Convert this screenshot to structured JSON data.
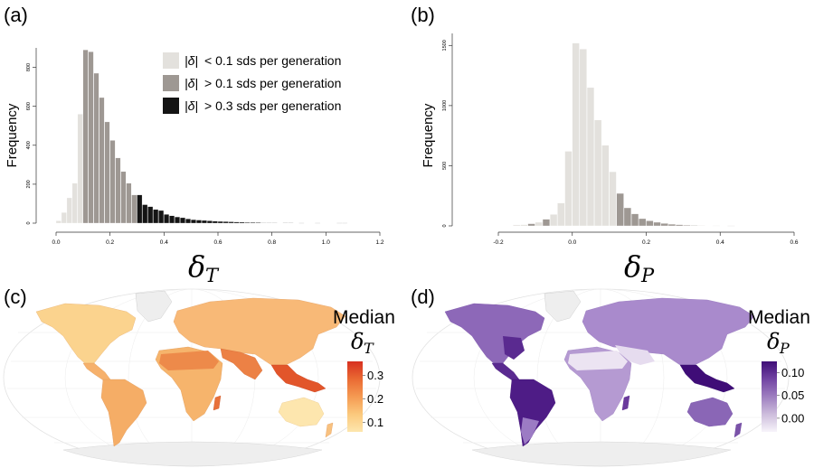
{
  "panels": {
    "a": "(a)",
    "b": "(b)",
    "c": "(c)",
    "d": "(d)"
  },
  "legend": {
    "items": [
      {
        "lhs": "|δ|",
        "text": "< 0.1 sds per generation",
        "color": "#e3e1dd"
      },
      {
        "lhs": "|δ|",
        "text": "> 0.1 sds per generation",
        "color": "#9e9893"
      },
      {
        "lhs": "|δ|",
        "text": "> 0.3 sds per generation",
        "color": "#141414"
      }
    ]
  },
  "colors": {
    "low": "#e3e1dd",
    "mid": "#9e9893",
    "high": "#141414",
    "land_a_low": "#fde6ae",
    "land_a_high": "#e2431f",
    "land_b_low": "#f1eef6",
    "land_b_high": "#4a1580",
    "ice": "#ececec",
    "outline": "#d8d8d8"
  },
  "chart_data": [
    {
      "type": "bar",
      "panel": "a",
      "ylabel": "Frequency",
      "xlabel_symbol": "δ",
      "xlabel_sub": "T",
      "xlim": [
        0.0,
        1.2
      ],
      "ylim": [
        0,
        900
      ],
      "xticks": [
        "0.0",
        "0.2",
        "0.4",
        "0.6",
        "0.8",
        "1.0",
        "1.2"
      ],
      "xtick_values": [
        0.0,
        0.2,
        0.4,
        0.6,
        0.8,
        1.0,
        1.2
      ],
      "yticks": [
        "0",
        "200",
        "400",
        "600",
        "800"
      ],
      "ytick_values": [
        0,
        200,
        400,
        600,
        800
      ],
      "bin_width": 0.02,
      "bins": [
        {
          "x": 0.0,
          "y": 12,
          "g": 0
        },
        {
          "x": 0.02,
          "y": 55,
          "g": 0
        },
        {
          "x": 0.04,
          "y": 130,
          "g": 0
        },
        {
          "x": 0.06,
          "y": 205,
          "g": 0
        },
        {
          "x": 0.08,
          "y": 560,
          "g": 0
        },
        {
          "x": 0.1,
          "y": 890,
          "g": 1
        },
        {
          "x": 0.12,
          "y": 880,
          "g": 1
        },
        {
          "x": 0.14,
          "y": 770,
          "g": 1
        },
        {
          "x": 0.16,
          "y": 645,
          "g": 1
        },
        {
          "x": 0.18,
          "y": 520,
          "g": 1
        },
        {
          "x": 0.2,
          "y": 425,
          "g": 1
        },
        {
          "x": 0.22,
          "y": 335,
          "g": 1
        },
        {
          "x": 0.24,
          "y": 265,
          "g": 1
        },
        {
          "x": 0.26,
          "y": 205,
          "g": 1
        },
        {
          "x": 0.28,
          "y": 145,
          "g": 1
        },
        {
          "x": 0.3,
          "y": 145,
          "g": 2
        },
        {
          "x": 0.32,
          "y": 95,
          "g": 2
        },
        {
          "x": 0.34,
          "y": 85,
          "g": 2
        },
        {
          "x": 0.36,
          "y": 70,
          "g": 2
        },
        {
          "x": 0.38,
          "y": 65,
          "g": 2
        },
        {
          "x": 0.4,
          "y": 45,
          "g": 2
        },
        {
          "x": 0.42,
          "y": 38,
          "g": 2
        },
        {
          "x": 0.44,
          "y": 32,
          "g": 2
        },
        {
          "x": 0.46,
          "y": 28,
          "g": 2
        },
        {
          "x": 0.48,
          "y": 22,
          "g": 2
        },
        {
          "x": 0.5,
          "y": 18,
          "g": 2
        },
        {
          "x": 0.52,
          "y": 16,
          "g": 2
        },
        {
          "x": 0.54,
          "y": 14,
          "g": 2
        },
        {
          "x": 0.56,
          "y": 12,
          "g": 2
        },
        {
          "x": 0.58,
          "y": 10,
          "g": 2
        },
        {
          "x": 0.6,
          "y": 9,
          "g": 2
        },
        {
          "x": 0.62,
          "y": 8,
          "g": 2
        },
        {
          "x": 0.64,
          "y": 7,
          "g": 2
        },
        {
          "x": 0.66,
          "y": 6,
          "g": 2
        },
        {
          "x": 0.68,
          "y": 5,
          "g": 2
        },
        {
          "x": 0.7,
          "y": 4,
          "g": 2
        },
        {
          "x": 0.72,
          "y": 4,
          "g": 2
        },
        {
          "x": 0.74,
          "y": 3,
          "g": 2
        },
        {
          "x": 0.76,
          "y": 2,
          "g": 2
        },
        {
          "x": 0.78,
          "y": 2,
          "g": 2
        },
        {
          "x": 0.8,
          "y": 2,
          "g": 2
        },
        {
          "x": 0.84,
          "y": 2,
          "g": 2
        },
        {
          "x": 0.86,
          "y": 2,
          "g": 2
        },
        {
          "x": 0.9,
          "y": 1,
          "g": 2
        },
        {
          "x": 0.96,
          "y": 1,
          "g": 2
        },
        {
          "x": 1.04,
          "y": 1,
          "g": 2
        },
        {
          "x": 1.06,
          "y": 1,
          "g": 2
        }
      ]
    },
    {
      "type": "bar",
      "panel": "b",
      "ylabel": "Frequency",
      "xlabel_symbol": "δ",
      "xlabel_sub": "P",
      "xlim": [
        -0.2,
        0.6
      ],
      "ylim": [
        0,
        1600
      ],
      "xticks": [
        "-0.2",
        "0.0",
        "0.2",
        "0.4",
        "0.6"
      ],
      "xtick_values": [
        -0.2,
        0.0,
        0.2,
        0.4,
        0.6
      ],
      "yticks": [
        "0",
        "500",
        "1000",
        "1500"
      ],
      "ytick_values": [
        0,
        500,
        1000,
        1500
      ],
      "bin_width": 0.02,
      "bins": [
        {
          "x": -0.16,
          "y": 8,
          "g": 0
        },
        {
          "x": -0.14,
          "y": 10,
          "g": 0
        },
        {
          "x": -0.12,
          "y": 18,
          "g": 1
        },
        {
          "x": -0.1,
          "y": 30,
          "g": 0
        },
        {
          "x": -0.08,
          "y": 55,
          "g": 1
        },
        {
          "x": -0.06,
          "y": 95,
          "g": 0
        },
        {
          "x": -0.04,
          "y": 190,
          "g": 0
        },
        {
          "x": -0.02,
          "y": 620,
          "g": 0
        },
        {
          "x": 0.0,
          "y": 1520,
          "g": 0
        },
        {
          "x": 0.02,
          "y": 1470,
          "g": 0
        },
        {
          "x": 0.04,
          "y": 1150,
          "g": 0
        },
        {
          "x": 0.06,
          "y": 880,
          "g": 0
        },
        {
          "x": 0.08,
          "y": 670,
          "g": 0
        },
        {
          "x": 0.1,
          "y": 450,
          "g": 0
        },
        {
          "x": 0.12,
          "y": 270,
          "g": 1
        },
        {
          "x": 0.14,
          "y": 150,
          "g": 1
        },
        {
          "x": 0.16,
          "y": 100,
          "g": 1
        },
        {
          "x": 0.18,
          "y": 60,
          "g": 1
        },
        {
          "x": 0.2,
          "y": 42,
          "g": 1
        },
        {
          "x": 0.22,
          "y": 30,
          "g": 1
        },
        {
          "x": 0.24,
          "y": 20,
          "g": 1
        },
        {
          "x": 0.26,
          "y": 14,
          "g": 1
        },
        {
          "x": 0.28,
          "y": 10,
          "g": 1
        },
        {
          "x": 0.3,
          "y": 6,
          "g": 1
        },
        {
          "x": 0.32,
          "y": 4,
          "g": 1
        },
        {
          "x": 0.34,
          "y": 3,
          "g": 1
        },
        {
          "x": 0.38,
          "y": 2,
          "g": 1
        },
        {
          "x": 0.42,
          "y": 1,
          "g": 1
        }
      ]
    },
    {
      "type": "heatmap",
      "panel": "c",
      "colorbar_title": "Median",
      "colorbar_symbol": "δ",
      "colorbar_sub": "T",
      "colorbar_ticks": [
        "0.3",
        "0.2",
        "0.1"
      ],
      "colorbar_tick_values": [
        0.3,
        0.2,
        0.1
      ],
      "colorbar_range": [
        0.06,
        0.36
      ],
      "colorbar_colors": [
        "#fde6ae",
        "#fbc97d",
        "#f59a52",
        "#ea6a33",
        "#d7301f"
      ]
    },
    {
      "type": "heatmap",
      "panel": "d",
      "colorbar_title": "Median",
      "colorbar_symbol": "δ",
      "colorbar_sub": "P",
      "colorbar_ticks": [
        "0.10",
        "0.05",
        "0.00"
      ],
      "colorbar_tick_values": [
        0.1,
        0.05,
        0.0
      ],
      "colorbar_range": [
        -0.03,
        0.125
      ],
      "colorbar_colors": [
        "#f7f4fa",
        "#cdbddc",
        "#9e7fc0",
        "#7244a3",
        "#3f0d77"
      ]
    }
  ]
}
